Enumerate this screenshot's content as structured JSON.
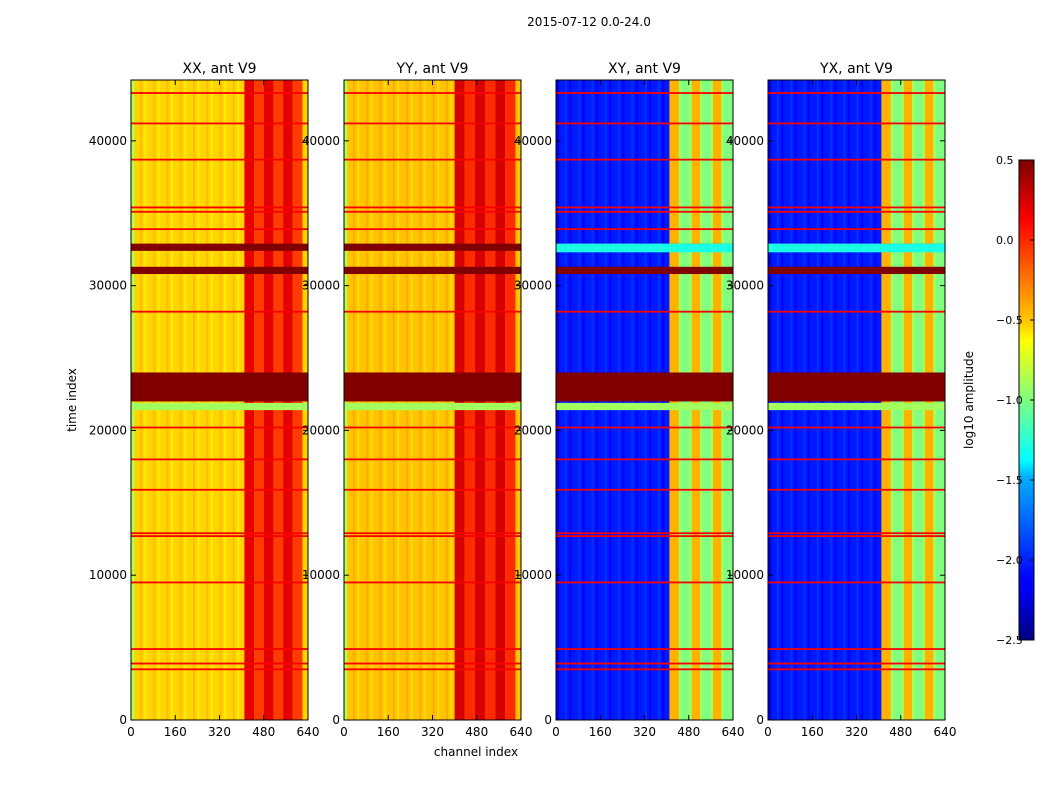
{
  "chart_data": {
    "type": "heatmap",
    "suptitle": "2015-07-12 0.0-24.0",
    "xlabel": "channel index",
    "ylabel": "time index",
    "xlim": [
      0,
      640
    ],
    "ylim": [
      0,
      44200
    ],
    "x_ticks": [
      0,
      160,
      320,
      480,
      640
    ],
    "y_ticks": [
      0,
      10000,
      20000,
      30000,
      40000
    ],
    "colorbar": {
      "label": "log10 amplitude",
      "range": [
        -2.5,
        0.5
      ],
      "ticks": [
        0.5,
        0.0,
        -0.5,
        -1.0,
        -1.5,
        -2.0,
        -2.5
      ],
      "tick_labels": [
        "0.5",
        "0.0",
        "−0.5",
        "−1.0",
        "−1.5",
        "−2.0",
        "−2.5"
      ],
      "colormap": "jet"
    },
    "panels": [
      {
        "title": "XX, ant V9",
        "kind": "auto",
        "background": -0.5,
        "high_channel_range": [
          410,
          620
        ],
        "high_value": 0.2
      },
      {
        "title": "YY, ant V9",
        "kind": "auto",
        "background": -0.45,
        "high_channel_range": [
          400,
          620
        ],
        "high_value": 0.25
      },
      {
        "title": "XY, ant V9",
        "kind": "cross",
        "background": -2.05,
        "high_channel_range": [
          410,
          640
        ],
        "high_value": -0.4
      },
      {
        "title": "YX, ant V9",
        "kind": "cross",
        "background": -2.05,
        "high_channel_range": [
          410,
          640
        ],
        "high_value": -0.4
      }
    ],
    "saturated_time_ranges": [
      [
        22000,
        24000
      ],
      [
        32400,
        32900
      ],
      [
        30800,
        31300
      ]
    ],
    "flagged_time_rows": [
      3500,
      3900,
      4900,
      9500,
      12700,
      12900,
      15900,
      18000,
      20200,
      28200,
      33900,
      35100,
      35400,
      38700,
      41200,
      43300
    ]
  }
}
